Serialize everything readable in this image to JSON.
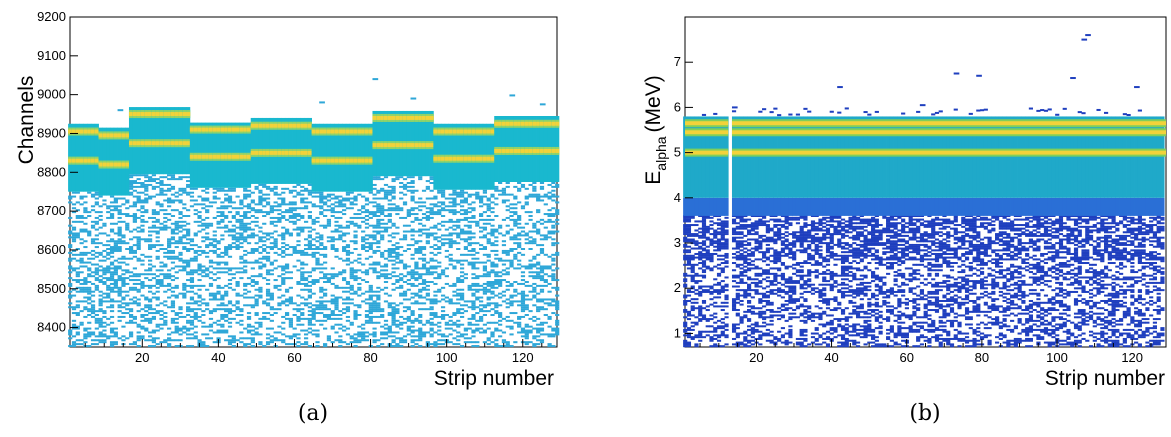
{
  "panels": [
    {
      "caption": "(a)",
      "chart_data": {
        "type": "heatmap",
        "title": "",
        "xlabel": "Strip number",
        "ylabel": "Channels",
        "xlim": [
          1,
          129
        ],
        "ylim": [
          8350,
          9200
        ],
        "xticks": [
          20,
          40,
          60,
          80,
          100,
          120
        ],
        "yticks": [
          8400,
          8500,
          8600,
          8700,
          8800,
          8900,
          9000,
          9100,
          9200
        ],
        "grid": false,
        "colors": {
          "sparse": "#2ea7d8",
          "dense": "#19b8cf",
          "peak": "#f2d23a",
          "peak_edge": "#8fd36a"
        },
        "strip_groups": [
          {
            "x_range": [
              1,
              8
            ],
            "peak_low": 8830,
            "peak_high": 8905,
            "top": 8925
          },
          {
            "x_range": [
              9,
              16
            ],
            "peak_low": 8820,
            "peak_high": 8895,
            "top": 8915
          },
          {
            "x_range": [
              17,
              32
            ],
            "peak_low": 8875,
            "peak_high": 8950,
            "top": 8968
          },
          {
            "x_range": [
              33,
              48
            ],
            "peak_low": 8840,
            "peak_high": 8910,
            "top": 8928
          },
          {
            "x_range": [
              49,
              64
            ],
            "peak_low": 8850,
            "peak_high": 8920,
            "top": 8940
          },
          {
            "x_range": [
              65,
              80
            ],
            "peak_low": 8830,
            "peak_high": 8905,
            "top": 8925
          },
          {
            "x_range": [
              81,
              96
            ],
            "peak_low": 8870,
            "peak_high": 8940,
            "top": 8958
          },
          {
            "x_range": [
              97,
              112
            ],
            "peak_low": 8835,
            "peak_high": 8905,
            "top": 8925
          },
          {
            "x_range": [
              113,
              129
            ],
            "peak_low": 8855,
            "peak_high": 8925,
            "top": 8945
          }
        ],
        "outliers": [
          [
            14,
            8960
          ],
          [
            67,
            8980
          ],
          [
            81,
            9040
          ],
          [
            91,
            8990
          ],
          [
            117,
            8998
          ],
          [
            125,
            8975
          ]
        ]
      }
    },
    {
      "caption": "(b)",
      "chart_data": {
        "type": "heatmap",
        "title": "",
        "xlabel": "Strip number",
        "ylabel": "E",
        "ylabel_sub": "alpha",
        "ylabel_unit": "(MeV)",
        "xlim": [
          1,
          129
        ],
        "ylim": [
          0.7,
          8
        ],
        "xticks": [
          20,
          40,
          60,
          80,
          100,
          120
        ],
        "yticks": [
          1,
          2,
          3,
          4,
          5,
          6,
          7
        ],
        "grid": false,
        "colors": {
          "sparse": "#1f3fbf",
          "mid": "#2a6fd6",
          "band": "#1fa9c9",
          "peak": "#f2d23a",
          "peak_edge": "#7fcf5a"
        },
        "peaks_mev": [
          5.0,
          5.45,
          5.65
        ],
        "dense_band_mev": [
          4.0,
          5.8
        ],
        "blank_strip": 13,
        "outliers": [
          [
            14,
            6.0
          ],
          [
            42,
            6.45
          ],
          [
            64,
            6.05
          ],
          [
            73,
            6.75
          ],
          [
            79,
            6.7
          ],
          [
            104,
            6.65
          ],
          [
            107,
            7.5
          ],
          [
            108,
            7.6
          ],
          [
            121,
            6.45
          ]
        ]
      }
    }
  ]
}
